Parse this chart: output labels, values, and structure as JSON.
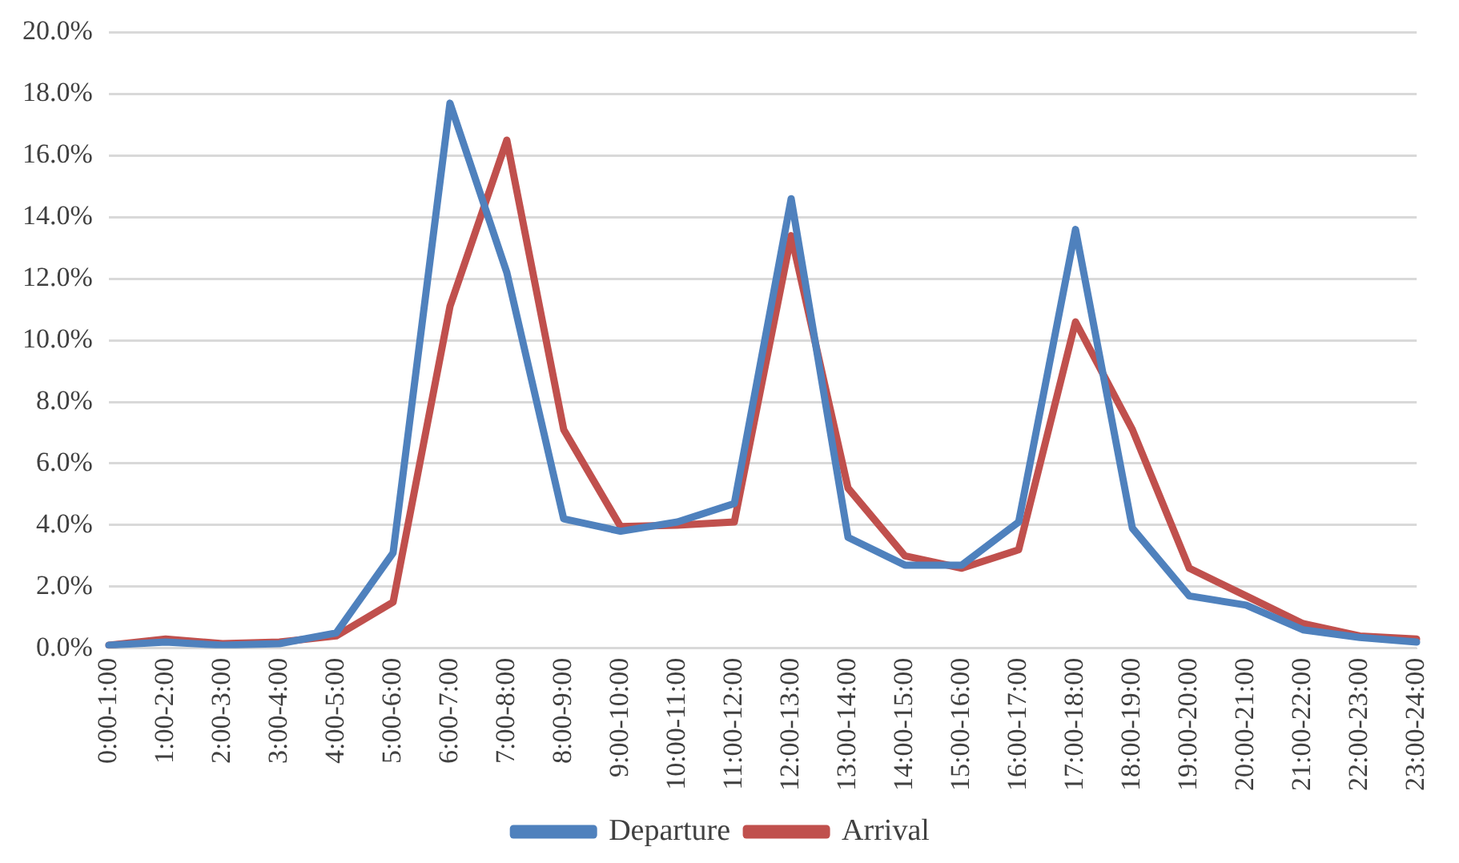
{
  "chart_data": {
    "type": "line",
    "categories": [
      "0:00-1:00",
      "1:00-2:00",
      "2:00-3:00",
      "3:00-4:00",
      "4:00-5:00",
      "5:00-6:00",
      "6:00-7:00",
      "7:00-8:00",
      "8:00-9:00",
      "9:00-10:00",
      "10:00-11:00",
      "11:00-12:00",
      "12:00-13:00",
      "13:00-14:00",
      "14:00-15:00",
      "15:00-16:00",
      "16:00-17:00",
      "17:00-18:00",
      "18:00-19:00",
      "19:00-20:00",
      "20:00-21:00",
      "21:00-22:00",
      "22:00-23:00",
      "23:00-24:00"
    ],
    "series": [
      {
        "name": "Departure",
        "color": "#4f81bd",
        "values": [
          0.1,
          0.2,
          0.1,
          0.15,
          0.5,
          3.1,
          17.7,
          12.2,
          4.2,
          3.8,
          4.1,
          4.7,
          14.6,
          3.6,
          2.7,
          2.7,
          4.1,
          13.6,
          3.9,
          1.7,
          1.4,
          0.6,
          0.35,
          0.2
        ]
      },
      {
        "name": "Arrival",
        "color": "#c0504d",
        "values": [
          0.1,
          0.3,
          0.15,
          0.2,
          0.4,
          1.5,
          11.1,
          16.5,
          7.1,
          3.95,
          4.0,
          4.1,
          13.4,
          5.2,
          3.0,
          2.6,
          3.2,
          10.6,
          7.1,
          2.6,
          1.7,
          0.8,
          0.4,
          0.3
        ]
      }
    ],
    "ylim": [
      0,
      20
    ],
    "yticks": [
      {
        "value": 0,
        "label": "0.0%"
      },
      {
        "value": 2,
        "label": "2.0%"
      },
      {
        "value": 4,
        "label": "4.0%"
      },
      {
        "value": 6,
        "label": "6.0%"
      },
      {
        "value": 8,
        "label": "8.0%"
      },
      {
        "value": 10,
        "label": "10.0%"
      },
      {
        "value": 12,
        "label": "12.0%"
      },
      {
        "value": 14,
        "label": "14.0%"
      },
      {
        "value": 16,
        "label": "16.0%"
      },
      {
        "value": 18,
        "label": "18.0%"
      },
      {
        "value": 20,
        "label": "20.0%"
      }
    ],
    "grid": "y",
    "legend": "bottom",
    "marker": "none",
    "line_style": "solid"
  }
}
